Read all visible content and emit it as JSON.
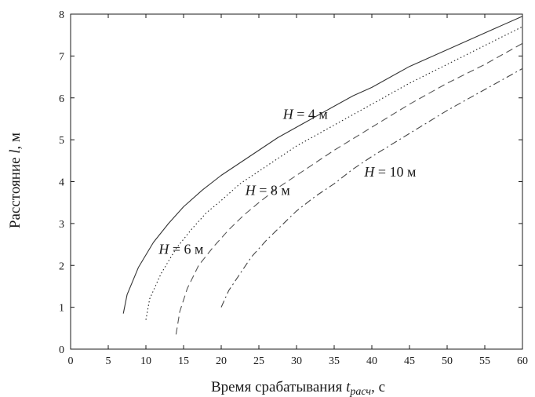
{
  "chart_data": {
    "type": "line",
    "xlabel": "Время срабатывания",
    "xlabel_var": "t",
    "xlabel_sub": "расч",
    "xlabel_unit": ", с",
    "ylabel": "Расстояние",
    "ylabel_var": "l",
    "ylabel_unit": ", м",
    "xlim": [
      0,
      60
    ],
    "ylim": [
      0,
      8
    ],
    "xticks": [
      "0",
      "5",
      "10",
      "15",
      "20",
      "25",
      "30",
      "35",
      "40",
      "45",
      "50",
      "55",
      "60"
    ],
    "yticks": [
      "0",
      "1",
      "2",
      "3",
      "4",
      "5",
      "6",
      "7",
      "8"
    ],
    "grid": false,
    "series": [
      {
        "name": "H = 4 м",
        "style": "solid",
        "x": [
          7,
          7.5,
          9,
          11,
          13,
          15,
          17.5,
          20,
          22.5,
          25,
          27.5,
          30,
          32.5,
          35,
          37.5,
          40,
          45,
          50,
          55,
          60
        ],
        "y": [
          0.85,
          1.3,
          1.95,
          2.55,
          3.0,
          3.4,
          3.8,
          4.15,
          4.45,
          4.75,
          5.05,
          5.3,
          5.55,
          5.8,
          6.05,
          6.25,
          6.75,
          7.15,
          7.55,
          7.95
        ]
      },
      {
        "name": "H = 6 м",
        "style": "dotted",
        "x": [
          10,
          10.5,
          12,
          14,
          16,
          18,
          20,
          22.5,
          25,
          27.5,
          30,
          32.5,
          35,
          40,
          45,
          50,
          55,
          60
        ],
        "y": [
          0.7,
          1.2,
          1.8,
          2.4,
          2.85,
          3.25,
          3.55,
          3.95,
          4.25,
          4.55,
          4.85,
          5.1,
          5.35,
          5.85,
          6.35,
          6.8,
          7.25,
          7.7
        ]
      },
      {
        "name": "H = 8 м",
        "style": "dashed",
        "x": [
          14,
          14.5,
          15.5,
          17,
          19,
          21,
          23,
          25,
          27.5,
          30,
          32.5,
          35,
          40,
          45,
          50,
          55,
          60
        ],
        "y": [
          0.35,
          0.9,
          1.45,
          2.0,
          2.45,
          2.85,
          3.2,
          3.5,
          3.85,
          4.15,
          4.45,
          4.75,
          5.3,
          5.85,
          6.35,
          6.8,
          7.3
        ]
      },
      {
        "name": "H = 10 м",
        "style": "dashdot",
        "x": [
          20,
          21,
          22.5,
          24,
          26,
          28,
          30,
          32.5,
          35,
          37.5,
          40,
          45,
          50,
          55,
          60
        ],
        "y": [
          1.0,
          1.4,
          1.8,
          2.2,
          2.6,
          2.95,
          3.3,
          3.65,
          3.95,
          4.3,
          4.6,
          5.15,
          5.7,
          6.2,
          6.7
        ]
      }
    ],
    "annotations": [
      {
        "var": "H",
        "text": " = 4 м",
        "x": 28.2,
        "y": 5.5
      },
      {
        "var": "H",
        "text": " = 6 м",
        "x": 11.7,
        "y": 2.28
      },
      {
        "var": "H",
        "text": " = 8 м",
        "x": 23.2,
        "y": 3.68
      },
      {
        "var": "H",
        "text": " = 10 м",
        "x": 39.0,
        "y": 4.12
      }
    ]
  }
}
